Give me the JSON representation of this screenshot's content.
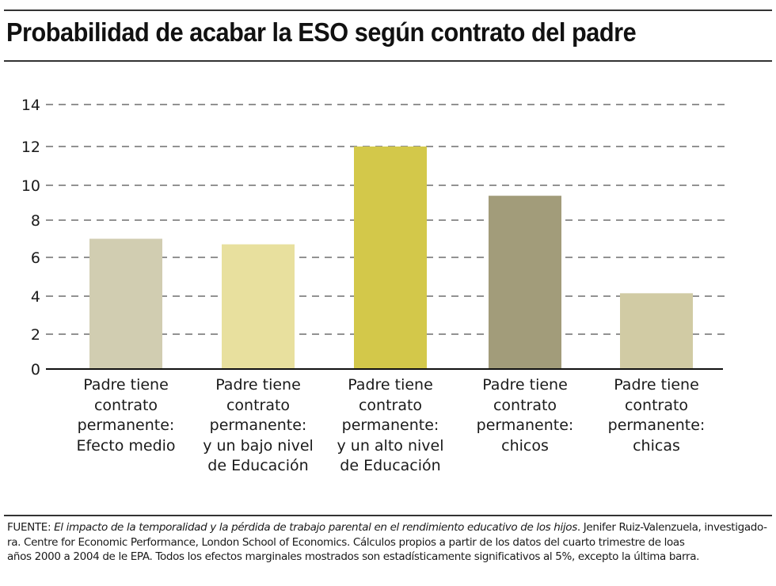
{
  "header": {
    "title": "Probabilidad de acabar la ESO según contrato del padre"
  },
  "chart_data": {
    "type": "bar",
    "title": "Probabilidad de acabar la ESO según contrato del padre",
    "xlabel": "",
    "ylabel": "",
    "ylim": [
      0,
      14
    ],
    "yticks": [
      0,
      2,
      4,
      6,
      8,
      10,
      12,
      14
    ],
    "ytick_labels": [
      "0",
      "2",
      "4",
      "6",
      "8",
      "10",
      "12",
      "14"
    ],
    "grid": true,
    "grid_style": "dashed",
    "categories": [
      [
        "Padre tiene",
        "contrato",
        "permanente:",
        "Efecto medio"
      ],
      [
        "Padre tiene",
        "contrato",
        "permanente:",
        "y un bajo nivel",
        "de Educación"
      ],
      [
        "Padre tiene",
        "contrato",
        "permanente:",
        "y un alto nivel",
        "de Educación"
      ],
      [
        "Padre tiene",
        "contrato",
        "permanente:",
        "chicos"
      ],
      [
        "Padre tiene",
        "contrato",
        "permanente:",
        "chicas"
      ]
    ],
    "values": [
      7.0,
      6.7,
      12.0,
      9.4,
      4.15
    ],
    "colors": [
      "#d1cdb1",
      "#e8e09e",
      "#d3c84a",
      "#a29c7a",
      "#d1cba4"
    ]
  },
  "footer": {
    "line1_prefix": "FUENTE: ",
    "line1_italic": "El impacto de la temporalidad y la pérdida de trabajo parental en el rendimiento educativo de los hijos",
    "line1_suffix": ". Jenifer Ruiz-Valenzuela, investigado-",
    "line2": "ra. Centre for Economic Performance, London School of Economics. Cálculos propios a partir de los datos del cuarto trimestre de loas",
    "line3": "años 2000 a 2004 de le EPA. Todos los efectos marginales mostrados son estadísticamente significativos al 5%, excepto la última barra."
  }
}
